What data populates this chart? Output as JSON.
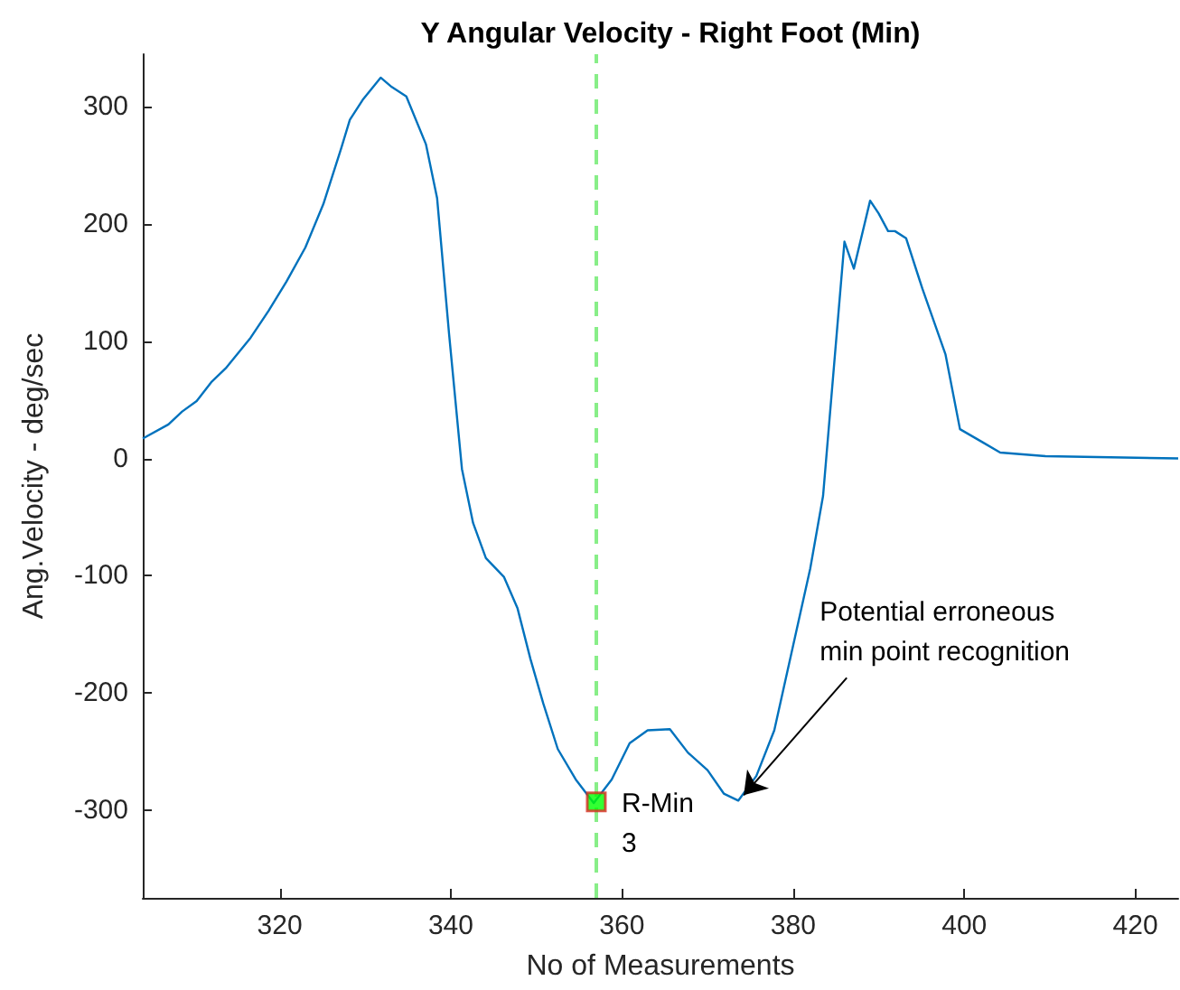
{
  "chart_data": {
    "type": "line",
    "title": "Y Angular Velocity - Right Foot (Min)",
    "xlabel": "No of Measurements",
    "ylabel": "Ang.Velocity - deg/sec",
    "xlim": [
      304,
      425
    ],
    "xticks": [
      320,
      340,
      360,
      380,
      400,
      420
    ],
    "ylim": [
      -375,
      345
    ],
    "yticks": [
      -300,
      -200,
      -100,
      0,
      100,
      200,
      300
    ],
    "grid": false,
    "series": [
      {
        "color": "#0072bd",
        "x": [
          304,
          307,
          308.6,
          310.3,
          312,
          313.7,
          316.6,
          318.7,
          320.8,
          323,
          325.1,
          327.2,
          328.2,
          329.7,
          331.8,
          333.1,
          334.8,
          337.1,
          338.4,
          339.8,
          341.3,
          342.6,
          344.1,
          346.2,
          347.8,
          349.3,
          350.8,
          352.5,
          354.6,
          356.7,
          358.8,
          360.9,
          363,
          365.6,
          367.7,
          370,
          371.9,
          373.6,
          375.7,
          377.8,
          379.9,
          382,
          383.5,
          386,
          387.1,
          389,
          390,
          391.1,
          391.9,
          393.2,
          395.1,
          397.8,
          399.5,
          402.1,
          404.2,
          409.5,
          425
        ],
        "values": [
          17,
          29,
          40,
          49,
          65,
          77,
          103,
          126,
          151,
          180,
          217,
          265,
          289,
          306,
          325,
          317,
          309,
          268,
          222,
          106,
          -9,
          -55,
          -85,
          -101,
          -128,
          -171,
          -209,
          -248,
          -274,
          -294,
          -274,
          -243,
          -232,
          -231,
          -251,
          -266,
          -286,
          -292,
          -271,
          -232,
          -163,
          -94,
          -32,
          185,
          162,
          220,
          209,
          194,
          194,
          188,
          145,
          89,
          25,
          14,
          5,
          2,
          0
        ]
      },
      {
        "type": "scatter",
        "color": "#00ff00",
        "marker": "square",
        "x": [
          357
        ],
        "values": [
          -293
        ]
      }
    ],
    "ref_lines": [
      {
        "axis": "x",
        "value": 357,
        "color": "#88ee88",
        "line_style": "dashed"
      }
    ],
    "annotations": [
      {
        "text": "R-Min\n3",
        "x": 357,
        "y": -293
      },
      {
        "text": "Potential erroneous\nmin point recognition",
        "x": 373.6,
        "y": -292
      }
    ]
  }
}
